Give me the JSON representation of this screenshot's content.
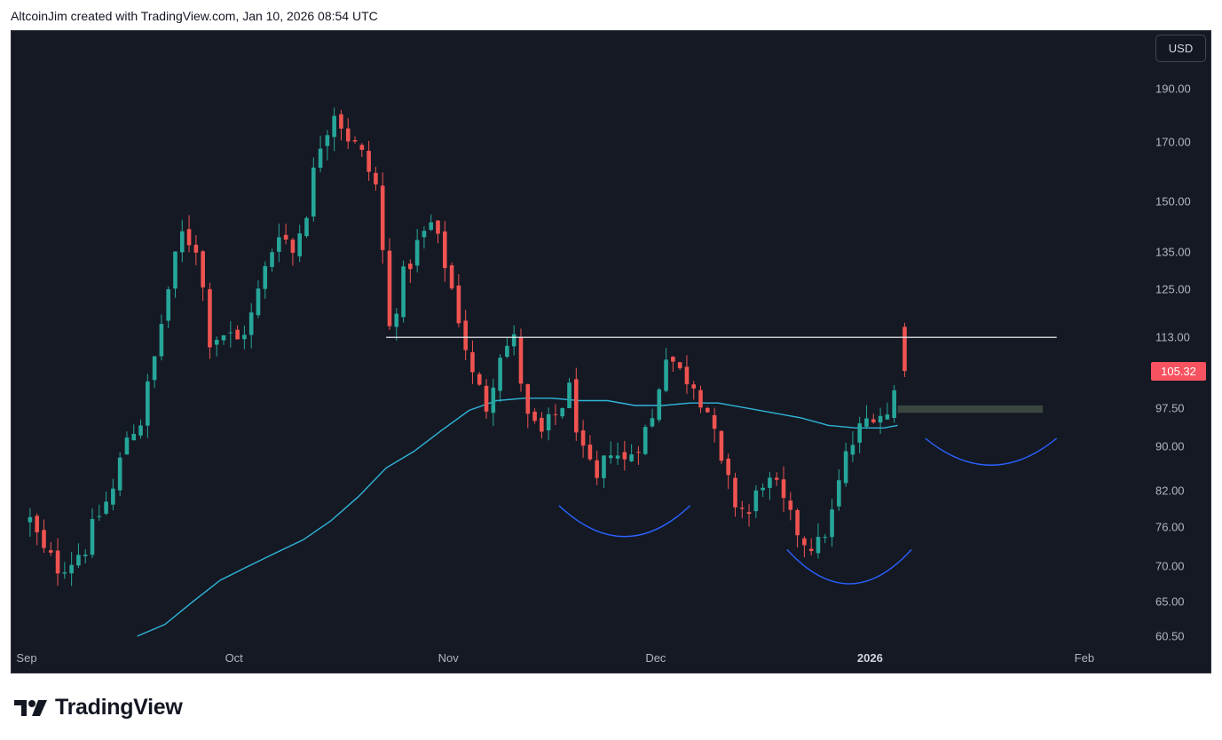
{
  "header": {
    "credit": "AltcoinJim created with TradingView.com, Jan 10, 2026 08:54 UTC"
  },
  "toolbar": {
    "currency_label": "USD"
  },
  "footer": {
    "brand": "TradingView",
    "logo_icon": "tradingview-logo-icon"
  },
  "colors": {
    "background": "#151924",
    "up": "#26a69a",
    "down": "#ef5350",
    "moving_average": "#2fb5d8",
    "arc": "#2962ff",
    "resistance": "#ffffff",
    "zone": "#3a4640",
    "price_badge": "#f7525f"
  },
  "chart_data": {
    "type": "candlestick",
    "scale": "log",
    "grid": false,
    "currency": "USD",
    "last_price": 105.32,
    "last_price_label": "105.32",
    "y_ticks": [
      190.0,
      170.0,
      150.0,
      135.0,
      125.0,
      113.0,
      97.5,
      90.0,
      82.0,
      76.0,
      70.0,
      65.0,
      60.5
    ],
    "y_tick_labels": [
      "190.00",
      "170.00",
      "150.00",
      "135.00",
      "125.00",
      "113.00",
      "97.50",
      "90.00",
      "82.00",
      "76.00",
      "70.00",
      "65.00",
      "60.50"
    ],
    "x_ticks": [
      {
        "date": "2025-09-01",
        "label": "Sep",
        "bold": false
      },
      {
        "date": "2025-10-01",
        "label": "Oct",
        "bold": false
      },
      {
        "date": "2025-11-01",
        "label": "Nov",
        "bold": false
      },
      {
        "date": "2025-12-01",
        "label": "Dec",
        "bold": false
      },
      {
        "date": "2026-01-01",
        "label": "2026",
        "bold": true
      },
      {
        "date": "2026-02-01",
        "label": "Feb",
        "bold": false
      }
    ],
    "x_range": [
      "2025-09-01",
      "2026-02-25"
    ],
    "close_path": [
      [
        "2025-09-01",
        77
      ],
      [
        "2025-09-03",
        72
      ],
      [
        "2025-09-05",
        70
      ],
      [
        "2025-09-07",
        71
      ],
      [
        "2025-09-09",
        73
      ],
      [
        "2025-09-11",
        78
      ],
      [
        "2025-09-13",
        82
      ],
      [
        "2025-09-15",
        92
      ],
      [
        "2025-09-17",
        95
      ],
      [
        "2025-09-19",
        108
      ],
      [
        "2025-09-21",
        125
      ],
      [
        "2025-09-23",
        140
      ],
      [
        "2025-09-25",
        137
      ],
      [
        "2025-09-27",
        113
      ],
      [
        "2025-09-29",
        114
      ],
      [
        "2025-10-01",
        112
      ],
      [
        "2025-10-03",
        118
      ],
      [
        "2025-10-05",
        130
      ],
      [
        "2025-10-07",
        142
      ],
      [
        "2025-10-09",
        135
      ],
      [
        "2025-10-11",
        148
      ],
      [
        "2025-10-13",
        170
      ],
      [
        "2025-10-15",
        182
      ],
      [
        "2025-10-17",
        172
      ],
      [
        "2025-10-19",
        165
      ],
      [
        "2025-10-21",
        155
      ],
      [
        "2025-10-23",
        115
      ],
      [
        "2025-10-25",
        128
      ],
      [
        "2025-10-27",
        137
      ],
      [
        "2025-10-29",
        143
      ],
      [
        "2025-10-31",
        132
      ],
      [
        "2025-11-02",
        118
      ],
      [
        "2025-11-04",
        104
      ],
      [
        "2025-11-06",
        98
      ],
      [
        "2025-11-08",
        110
      ],
      [
        "2025-11-10",
        112
      ],
      [
        "2025-11-12",
        95
      ],
      [
        "2025-11-14",
        92
      ],
      [
        "2025-11-16",
        96
      ],
      [
        "2025-11-18",
        101
      ],
      [
        "2025-11-20",
        88
      ],
      [
        "2025-11-22",
        83
      ],
      [
        "2025-11-24",
        90
      ],
      [
        "2025-11-26",
        87
      ],
      [
        "2025-11-28",
        91
      ],
      [
        "2025-11-30",
        95
      ],
      [
        "2025-12-02",
        110
      ],
      [
        "2025-12-04",
        105
      ],
      [
        "2025-12-06",
        103
      ],
      [
        "2025-12-08",
        97
      ],
      [
        "2025-12-10",
        86
      ],
      [
        "2025-12-12",
        80
      ],
      [
        "2025-12-14",
        78
      ],
      [
        "2025-12-16",
        84
      ],
      [
        "2025-12-18",
        82
      ],
      [
        "2025-12-20",
        77
      ],
      [
        "2025-12-22",
        74
      ],
      [
        "2025-12-24",
        73
      ],
      [
        "2025-12-26",
        78
      ],
      [
        "2025-12-28",
        88
      ],
      [
        "2025-12-30",
        93
      ],
      [
        "2026-01-01",
        97
      ],
      [
        "2026-01-03",
        96
      ],
      [
        "2026-01-05",
        105.32
      ]
    ],
    "moving_average": [
      [
        "2025-09-17",
        60.5
      ],
      [
        "2025-09-21",
        62
      ],
      [
        "2025-09-25",
        65
      ],
      [
        "2025-09-29",
        68
      ],
      [
        "2025-10-03",
        70
      ],
      [
        "2025-10-07",
        72
      ],
      [
        "2025-10-11",
        74
      ],
      [
        "2025-10-15",
        77
      ],
      [
        "2025-10-19",
        81
      ],
      [
        "2025-10-23",
        86
      ],
      [
        "2025-10-27",
        89
      ],
      [
        "2025-10-31",
        93
      ],
      [
        "2025-11-04",
        97
      ],
      [
        "2025-11-08",
        99
      ],
      [
        "2025-11-12",
        99.5
      ],
      [
        "2025-11-16",
        99.5
      ],
      [
        "2025-11-20",
        99
      ],
      [
        "2025-11-24",
        99
      ],
      [
        "2025-11-28",
        98
      ],
      [
        "2025-12-02",
        98
      ],
      [
        "2025-12-06",
        98.5
      ],
      [
        "2025-12-10",
        98.5
      ],
      [
        "2025-12-14",
        97.5
      ],
      [
        "2025-12-18",
        96.5
      ],
      [
        "2025-12-22",
        95.5
      ],
      [
        "2025-12-26",
        94
      ],
      [
        "2025-12-30",
        93.5
      ],
      [
        "2026-01-03",
        93.5
      ],
      [
        "2026-01-05",
        94
      ]
    ],
    "annotations": {
      "resistance_line": {
        "price": 113,
        "from": "2025-10-23",
        "to": "2026-01-28"
      },
      "zone": {
        "price_top": 98,
        "price_bottom": 96.5,
        "from": "2026-01-05",
        "to": "2026-01-26"
      },
      "arcs": [
        {
          "from": "2025-11-17",
          "to": "2025-12-06",
          "start_price": 79.5,
          "bottom_price": 74.5
        },
        {
          "from": "2025-12-20",
          "to": "2026-01-07",
          "start_price": 72.5,
          "bottom_price": 67.5
        },
        {
          "from": "2026-01-09",
          "to": "2026-01-28",
          "start_price": 91.5,
          "bottom_price": 86.5
        }
      ]
    }
  }
}
